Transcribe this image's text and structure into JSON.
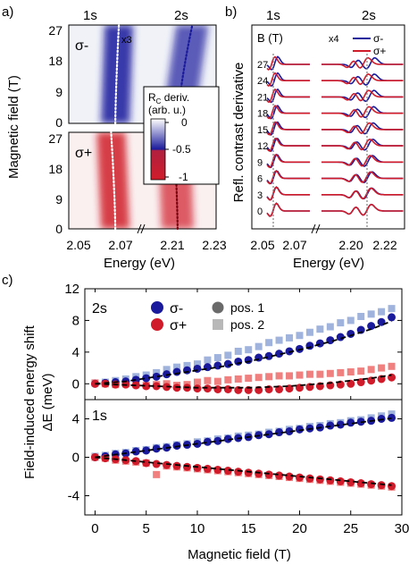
{
  "panel_labels": {
    "a": "a)",
    "b": "b)",
    "c": "c)"
  },
  "colors": {
    "sigma_minus": "#1a1a9c",
    "sigma_plus": "#d01c2a",
    "pos2_minus": "#9fb3dc",
    "pos2_plus": "#f08080",
    "gray": "#808080"
  },
  "chart_data": [
    {
      "id": "a",
      "type": "heatmap",
      "ylabel": "Magnetic field (T)",
      "xlabel": "Energy (eV)",
      "peak_labels": [
        "1s",
        "2s"
      ],
      "x2_label": "x3",
      "xticks": [
        "2.05",
        "2.07",
        "2.21",
        "2.23"
      ],
      "yticks": [
        "0",
        "9",
        "18",
        "27"
      ],
      "ylim": [
        0,
        29
      ],
      "colorbar": {
        "label_line1": "R",
        "label_sub": "C",
        "label_rest": " deriv.",
        "label_line2": "(arb. u.)",
        "ticks": [
          "0",
          "-0.5",
          "-1"
        ]
      },
      "subpanels": [
        {
          "label": "σ-",
          "color": "#1a1a9c",
          "line_1s_E": [
            2.0675,
            2.0692
          ],
          "line_2s_E": [
            2.2125,
            2.2195
          ]
        },
        {
          "label": "σ+",
          "color": "#d01c2a",
          "line_1s_E": [
            2.0675,
            2.0655
          ],
          "line_2s_E": [
            2.2125,
            2.2108
          ]
        }
      ]
    },
    {
      "id": "b",
      "type": "line",
      "ylabel": "Refl. contrast derivative",
      "xlabel": "Energy (eV)",
      "peak_labels": [
        "1s",
        "2s"
      ],
      "legend_title": "B (T)",
      "x2_label": "x4",
      "xticks": [
        "2.05",
        "2.07",
        "2.20",
        "2.22"
      ],
      "offset_labels": [
        "27",
        "24",
        "21",
        "18",
        "15",
        "12",
        "9",
        "6",
        "3",
        "0"
      ],
      "series": [
        {
          "name": "σ-",
          "color": "#1a1a9c"
        },
        {
          "name": "σ+",
          "color": "#d01c2a"
        }
      ]
    },
    {
      "id": "c",
      "type": "scatter",
      "ylabel_line1": "Field-induced energy shift",
      "ylabel_line2": "ΔE (meV)",
      "xlabel": "Magnetic field (T)",
      "xlim": [
        -1,
        30
      ],
      "xticks": [
        0,
        5,
        10,
        15,
        20,
        25,
        30
      ],
      "legend": {
        "sigma_minus": "σ-",
        "sigma_plus": "σ+",
        "pos1": "pos. 1",
        "pos2": "pos. 2"
      },
      "panels": [
        {
          "label": "2s",
          "ylim": [
            -2,
            12
          ],
          "yticks": [
            0,
            4,
            8,
            12
          ],
          "x": [
            0,
            1,
            2,
            3,
            4,
            5,
            6,
            7,
            8,
            9,
            10,
            11,
            12,
            13,
            14,
            15,
            16,
            17,
            18,
            19,
            20,
            21,
            22,
            23,
            24,
            25,
            26,
            27,
            28,
            29
          ],
          "sigma_minus_pos1": [
            0,
            0.1,
            0.2,
            0.3,
            0.5,
            0.7,
            0.9,
            1.2,
            1.5,
            1.7,
            1.9,
            2.1,
            2.3,
            2.5,
            2.8,
            3.0,
            3.3,
            3.5,
            3.8,
            4.1,
            4.4,
            4.8,
            5.1,
            5.5,
            5.9,
            6.3,
            6.8,
            7.3,
            7.8,
            8.4
          ],
          "sigma_minus_pos2": [
            0.1,
            0.2,
            0.4,
            0.6,
            0.9,
            1.1,
            1.4,
            1.8,
            2.1,
            2.3,
            2.5,
            3.0,
            3.3,
            3.6,
            4.1,
            4.3,
            4.7,
            5.2,
            5.5,
            5.8,
            6.1,
            6.5,
            6.9,
            7.2,
            7.7,
            8.0,
            8.5,
            8.8,
            9.1,
            9.5
          ],
          "sigma_plus_pos1": [
            0,
            0,
            -0.1,
            -0.1,
            -0.2,
            -0.3,
            -0.3,
            -0.4,
            -0.5,
            -0.5,
            -0.6,
            -0.6,
            -0.7,
            -0.7,
            -0.8,
            -0.8,
            -0.8,
            -0.7,
            -0.7,
            -0.6,
            -0.5,
            -0.4,
            -0.3,
            -0.2,
            -0.1,
            0,
            0.2,
            0.4,
            0.6,
            0.8
          ],
          "sigma_plus_pos2": [
            0.1,
            0,
            -0.1,
            0,
            -0.1,
            -0.2,
            -0.1,
            0,
            -0.2,
            -0.1,
            0.2,
            0.4,
            0.3,
            0.5,
            0.6,
            0.7,
            0.8,
            0.9,
            1.0,
            1.0,
            1.1,
            1.2,
            1.2,
            1.3,
            1.4,
            1.5,
            1.6,
            1.8,
            2.0,
            2.2
          ],
          "fit_minus": [
            0,
            0.1,
            0.2,
            0.3,
            0.5,
            0.7,
            0.9,
            1.1,
            1.3,
            1.5,
            1.7,
            1.9,
            2.1,
            2.3,
            2.6,
            2.8,
            3.1,
            3.4,
            3.7,
            4.0,
            4.3,
            4.6,
            5.0,
            5.3,
            5.7,
            6.1,
            6.5,
            6.9,
            7.4,
            7.9
          ],
          "fit_plus": [
            0,
            -0.05,
            -0.1,
            -0.15,
            -0.2,
            -0.25,
            -0.3,
            -0.35,
            -0.4,
            -0.45,
            -0.5,
            -0.5,
            -0.5,
            -0.5,
            -0.5,
            -0.5,
            -0.45,
            -0.4,
            -0.35,
            -0.3,
            -0.2,
            -0.1,
            0,
            0.1,
            0.25,
            0.4,
            0.55,
            0.7,
            0.9,
            1.1
          ]
        },
        {
          "label": "1s",
          "ylim": [
            -6,
            6
          ],
          "yticks": [
            -4,
            0,
            4
          ],
          "x": [
            0,
            1,
            2,
            3,
            4,
            5,
            6,
            7,
            8,
            9,
            10,
            11,
            12,
            13,
            14,
            15,
            16,
            17,
            18,
            19,
            20,
            21,
            22,
            23,
            24,
            25,
            26,
            27,
            28,
            29
          ],
          "sigma_minus_pos1": [
            0,
            0.1,
            0.3,
            0.4,
            0.6,
            0.7,
            0.9,
            1.0,
            1.2,
            1.3,
            1.4,
            1.6,
            1.7,
            1.9,
            2.0,
            2.1,
            2.3,
            2.4,
            2.6,
            2.7,
            2.9,
            3.0,
            3.1,
            3.3,
            3.4,
            3.6,
            3.7,
            3.8,
            4.0,
            4.1
          ],
          "sigma_minus_pos2": [
            0.1,
            0.2,
            0.4,
            0.5,
            0.7,
            0.8,
            1.0,
            1.1,
            1.3,
            1.4,
            1.6,
            1.7,
            1.9,
            2.0,
            2.2,
            2.3,
            2.4,
            2.6,
            2.7,
            2.9,
            3.0,
            3.2,
            3.3,
            3.5,
            3.6,
            3.8,
            3.9,
            4.1,
            4.3,
            4.5
          ],
          "sigma_plus_pos1": [
            0,
            -0.1,
            -0.2,
            -0.3,
            -0.4,
            -0.6,
            -0.7,
            -0.8,
            -0.9,
            -1.0,
            -1.1,
            -1.2,
            -1.3,
            -1.4,
            -1.5,
            -1.6,
            -1.7,
            -1.8,
            -1.9,
            -2.0,
            -2.1,
            -2.2,
            -2.3,
            -2.4,
            -2.5,
            -2.6,
            -2.7,
            -2.8,
            -2.9,
            -3.0
          ],
          "sigma_plus_pos2": [
            0,
            -0.1,
            -0.3,
            -0.4,
            -0.5,
            -0.6,
            -1.8,
            -0.9,
            -1.0,
            -1.1,
            -1.2,
            -1.3,
            -1.4,
            -1.5,
            -1.6,
            -1.7,
            -1.8,
            -1.9,
            -2.0,
            -2.1,
            -2.2,
            -2.3,
            -2.4,
            -2.5,
            -2.6,
            -2.7,
            -2.8,
            -2.9,
            -3.0,
            -3.1
          ],
          "fit_minus": [
            0,
            0.14,
            0.28,
            0.42,
            0.56,
            0.7,
            0.84,
            0.98,
            1.12,
            1.26,
            1.4,
            1.54,
            1.68,
            1.82,
            1.96,
            2.1,
            2.24,
            2.38,
            2.52,
            2.66,
            2.8,
            2.94,
            3.08,
            3.22,
            3.36,
            3.5,
            3.64,
            3.78,
            3.92,
            4.06
          ],
          "fit_plus": [
            0,
            -0.1,
            -0.2,
            -0.3,
            -0.4,
            -0.5,
            -0.6,
            -0.7,
            -0.8,
            -0.9,
            -1.0,
            -1.1,
            -1.2,
            -1.3,
            -1.4,
            -1.5,
            -1.6,
            -1.7,
            -1.8,
            -1.9,
            -2.0,
            -2.1,
            -2.2,
            -2.3,
            -2.4,
            -2.5,
            -2.6,
            -2.7,
            -2.8,
            -2.9
          ]
        }
      ]
    }
  ]
}
